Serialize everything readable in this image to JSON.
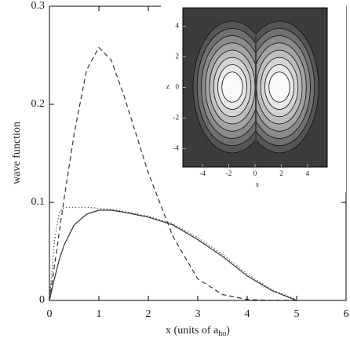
{
  "chart_data": {
    "type": "line",
    "ylabel": "wave function",
    "xlabel": [
      "x (units of a",
      "ho",
      ")"
    ],
    "x": [
      0,
      0.1,
      0.2,
      0.3,
      0.5,
      0.75,
      1,
      1.25,
      1.5,
      2,
      2.5,
      3,
      3.5,
      4,
      4.5,
      5
    ],
    "series": [
      {
        "color": "#333333",
        "linestyle": "dashed",
        "values": [
          0,
          0.035,
          0.07,
          0.105,
          0.17,
          0.235,
          0.258,
          0.245,
          0.21,
          0.13,
          0.065,
          0.022,
          0.006,
          0.001,
          0,
          0
        ]
      },
      {
        "color": "#333333",
        "linestyle": "solid",
        "values": [
          0,
          0.022,
          0.042,
          0.057,
          0.077,
          0.088,
          0.092,
          0.092,
          0.09,
          0.085,
          0.077,
          0.062,
          0.045,
          0.025,
          0.01,
          0
        ]
      },
      {
        "color": "#555555",
        "linestyle": "dotted",
        "values": [
          0,
          0.06,
          0.09,
          0.095,
          0.095,
          0.095,
          0.094,
          0.093,
          0.091,
          0.086,
          0.078,
          0.064,
          0.047,
          0.027,
          0.011,
          0.001
        ]
      }
    ],
    "xlim": [
      0,
      6
    ],
    "xticks": [
      0,
      1,
      2,
      3,
      4,
      5,
      6
    ],
    "ylim": [
      0,
      0.3
    ],
    "yticks": [
      0,
      0.1,
      0.2,
      0.3
    ],
    "inset": {
      "xlabel": "x",
      "ylabel": "z",
      "xlim": [
        -5.5,
        5.5
      ],
      "ylim": [
        -5.2,
        5.2
      ],
      "xticks": [
        {
          "value": -4,
          "label": "-4"
        },
        {
          "value": -2,
          "label": "-2"
        },
        0,
        2,
        4
      ],
      "yticks": [
        {
          "value": -4,
          "label": "-4"
        },
        {
          "value": -2,
          "label": "-2"
        },
        0,
        2,
        4
      ]
    }
  }
}
